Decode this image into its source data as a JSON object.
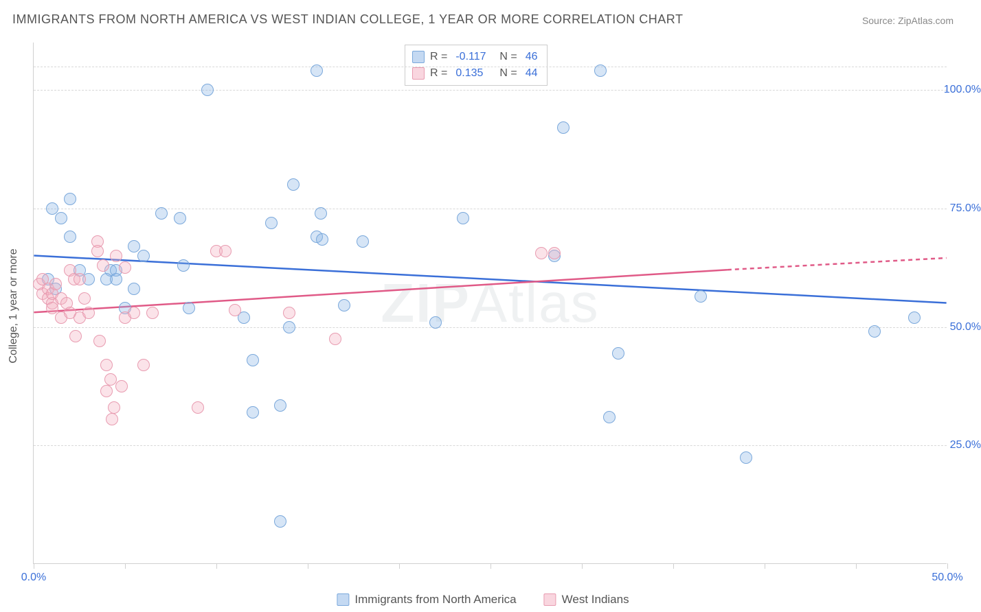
{
  "title": "IMMIGRANTS FROM NORTH AMERICA VS WEST INDIAN COLLEGE, 1 YEAR OR MORE CORRELATION CHART",
  "source": "Source: ZipAtlas.com",
  "ylabel": "College, 1 year or more",
  "watermark": "ZIPAtlas",
  "chart": {
    "type": "scatter",
    "xlim": [
      0,
      50
    ],
    "ylim": [
      0,
      110
    ],
    "xticks": [
      0,
      5,
      10,
      15,
      20,
      25,
      30,
      35,
      40,
      45,
      50
    ],
    "xtick_labels": {
      "0": "0.0%",
      "50": "50.0%"
    },
    "ygrid": [
      25,
      50,
      75,
      100,
      105
    ],
    "ytick_labels": {
      "25": "25.0%",
      "50": "50.0%",
      "75": "75.0%",
      "100": "100.0%"
    },
    "background_color": "#ffffff",
    "grid_color": "#d8d8d8",
    "axis_color": "#d0d0d0",
    "marker_size": 18,
    "series": [
      {
        "name": "Immigrants from North America",
        "fill": "rgba(138,180,230,0.35)",
        "stroke": "#7aa8db",
        "line_color": "#3a6fd8",
        "line_width": 2.5,
        "line_style": "solid",
        "trend": {
          "x1": 0,
          "y1": 65,
          "x2": 50,
          "y2": 55
        },
        "R": "-0.117",
        "N": "46",
        "points": [
          [
            1.0,
            75
          ],
          [
            1.5,
            73
          ],
          [
            2.0,
            69
          ],
          [
            2.0,
            77
          ],
          [
            2.5,
            62
          ],
          [
            4.2,
            62
          ],
          [
            4.5,
            62
          ],
          [
            5.0,
            54
          ],
          [
            5.5,
            67
          ],
          [
            7.0,
            74
          ],
          [
            8.0,
            73
          ],
          [
            8.2,
            63
          ],
          [
            8.5,
            54
          ],
          [
            9.5,
            100
          ],
          [
            11.5,
            52
          ],
          [
            12.0,
            32
          ],
          [
            12.0,
            43
          ],
          [
            13.0,
            72
          ],
          [
            13.5,
            33.5
          ],
          [
            14.0,
            50
          ],
          [
            14.2,
            80
          ],
          [
            15.5,
            104
          ],
          [
            15.5,
            69
          ],
          [
            15.7,
            74
          ],
          [
            15.8,
            68.5
          ],
          [
            17.0,
            54.5
          ],
          [
            18.0,
            68
          ],
          [
            22.0,
            51
          ],
          [
            23.5,
            73
          ],
          [
            28.5,
            65
          ],
          [
            29.0,
            92
          ],
          [
            31.0,
            104
          ],
          [
            31.5,
            31
          ],
          [
            32.0,
            44.5
          ],
          [
            36.5,
            56.5
          ],
          [
            39.0,
            22.5
          ],
          [
            46.0,
            49
          ],
          [
            48.2,
            52
          ],
          [
            13.5,
            9
          ],
          [
            4.0,
            60
          ],
          [
            4.5,
            60
          ],
          [
            1.2,
            58
          ],
          [
            0.8,
            60
          ],
          [
            3.0,
            60
          ],
          [
            6.0,
            65
          ],
          [
            5.5,
            58
          ]
        ]
      },
      {
        "name": "West Indians",
        "fill": "rgba(244,174,192,0.35)",
        "stroke": "#e89bb0",
        "line_color": "#e05a87",
        "line_width": 2.5,
        "line_style": "solid",
        "trend": {
          "x1": 0,
          "y1": 53,
          "x2": 38,
          "y2": 62
        },
        "trend_ext": {
          "x1": 38,
          "y1": 62,
          "x2": 50,
          "y2": 64.5
        },
        "R": "0.135",
        "N": "44",
        "points": [
          [
            0.3,
            59
          ],
          [
            0.5,
            57
          ],
          [
            0.5,
            60
          ],
          [
            0.8,
            58
          ],
          [
            0.8,
            56
          ],
          [
            1.0,
            55
          ],
          [
            1.0,
            57
          ],
          [
            1.2,
            59
          ],
          [
            1.5,
            56
          ],
          [
            1.5,
            52
          ],
          [
            1.8,
            55
          ],
          [
            2.0,
            62
          ],
          [
            2.0,
            53
          ],
          [
            2.2,
            60
          ],
          [
            2.3,
            48
          ],
          [
            2.5,
            52
          ],
          [
            2.5,
            60
          ],
          [
            2.8,
            56
          ],
          [
            3.0,
            53
          ],
          [
            3.5,
            68
          ],
          [
            3.5,
            66
          ],
          [
            3.6,
            47
          ],
          [
            3.8,
            63
          ],
          [
            4.0,
            42
          ],
          [
            4.0,
            36.5
          ],
          [
            4.2,
            39
          ],
          [
            4.3,
            30.5
          ],
          [
            4.4,
            33
          ],
          [
            4.5,
            65
          ],
          [
            4.8,
            37.5
          ],
          [
            5.0,
            52
          ],
          [
            5.0,
            62.5
          ],
          [
            5.5,
            53
          ],
          [
            6.0,
            42
          ],
          [
            6.5,
            53
          ],
          [
            9.0,
            33
          ],
          [
            10.0,
            66
          ],
          [
            10.5,
            66
          ],
          [
            11.0,
            53.5
          ],
          [
            14.0,
            53
          ],
          [
            16.5,
            47.5
          ],
          [
            27.8,
            65.5
          ],
          [
            28.5,
            65.5
          ],
          [
            1.0,
            54
          ]
        ]
      }
    ]
  },
  "legend_top": {
    "r_label": "R =",
    "n_label": "N ="
  },
  "legend_bottom": [
    {
      "swatch": "blue",
      "label": "Immigrants from North America"
    },
    {
      "swatch": "pink",
      "label": "West Indians"
    }
  ]
}
